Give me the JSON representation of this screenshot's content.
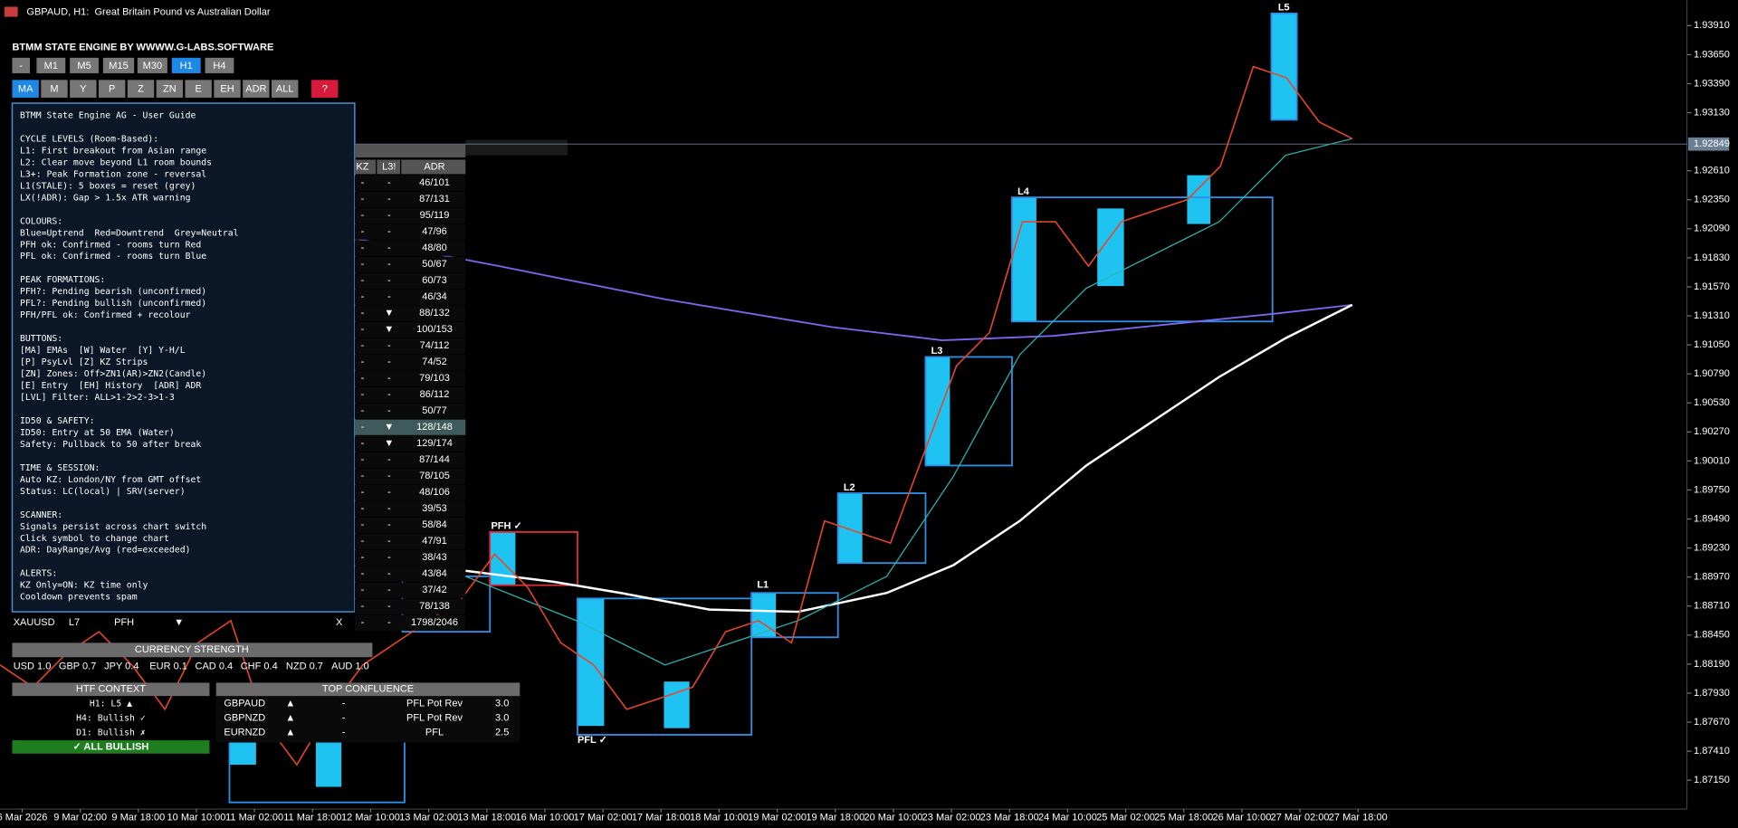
{
  "header": {
    "title": "GBPAUD, H1:  Great Britain Pound vs Australian Dollar"
  },
  "panel": {
    "title": "BTMM STATE ENGINE BY WWWW.G-LABS.SOFTWARE",
    "timeframes": [
      "-",
      "M1",
      "M5",
      "M15",
      "M30",
      "H1",
      "H4"
    ],
    "active_timeframe": "H1",
    "modes": [
      "MA",
      "M",
      "Y",
      "P",
      "Z",
      "ZN",
      "E",
      "EH",
      "ADR",
      "ALL",
      "?"
    ],
    "active_mode": "MA"
  },
  "guide": {
    "title": "BTMM State Engine AG - User Guide",
    "sections": [
      {
        "heading": "CYCLE LEVELS (Room-Based):",
        "lines": [
          "L1: First breakout from Asian range",
          "L2: Clear move beyond L1 room bounds",
          "L3+: Peak Formation zone - reversal",
          "L1(STALE): 5 boxes = reset (grey)",
          "LX(!ADR): Gap > 1.5x ATR warning"
        ]
      },
      {
        "heading": "COLOURS:",
        "lines": [
          "Blue=Uptrend  Red=Downtrend  Grey=Neutral",
          "PFH ok: Confirmed - rooms turn Red",
          "PFL ok: Confirmed - rooms turn Blue"
        ]
      },
      {
        "heading": "PEAK FORMATIONS:",
        "lines": [
          "PFH?: Pending bearish (unconfirmed)",
          "PFL?: Pending bullish (unconfirmed)",
          "PFH/PFL ok: Confirmed + recolour"
        ]
      },
      {
        "heading": "BUTTONS:",
        "lines": [
          "[MA] EMAs  [W] Water  [Y] Y-H/L",
          "[P] PsyLvl [Z] KZ Strips",
          "[ZN] Zones: Off>ZN1(AR)>ZN2(Candle)",
          "[E] Entry  [EH] History  [ADR] ADR",
          "[LVL] Filter: ALL>1-2>2-3>1-3"
        ]
      },
      {
        "heading": "ID50 & SAFETY:",
        "lines": [
          "ID50: Entry at 50 EMA (Water)",
          "Safety: Pullback to 50 after break"
        ]
      },
      {
        "heading": "TIME & SESSION:",
        "lines": [
          "Auto KZ: London/NY from GMT offset",
          "Status: LC(local) | SRV(server)"
        ]
      },
      {
        "heading": "SCANNER:",
        "lines": [
          "Signals persist across chart switch",
          "Click symbol to change chart",
          "ADR: DayRange/Avg (red=exceeded)"
        ]
      },
      {
        "heading": "ALERTS:",
        "lines": [
          "KZ Only=ON: KZ time only",
          "Cooldown prevents spam"
        ]
      }
    ]
  },
  "scanner": {
    "columns": [
      "KZ",
      "L3!",
      "ADR"
    ],
    "rows": [
      {
        "kz": "-",
        "l3": "-",
        "adr": "46/101"
      },
      {
        "kz": "-",
        "l3": "-",
        "adr": "87/131"
      },
      {
        "kz": "-",
        "l3": "-",
        "adr": "95/119"
      },
      {
        "kz": "-",
        "l3": "-",
        "adr": "47/96"
      },
      {
        "kz": "-",
        "l3": "-",
        "adr": "48/80"
      },
      {
        "kz": "-",
        "l3": "-",
        "adr": "50/67"
      },
      {
        "kz": "-",
        "l3": "-",
        "adr": "60/73",
        "color": "#e8a33a"
      },
      {
        "kz": "-",
        "l3": "-",
        "adr": "46/34",
        "color": "#e02020"
      },
      {
        "kz": "-",
        "l3": "▼",
        "adr": "88/132"
      },
      {
        "kz": "-",
        "l3": "▼",
        "adr": "100/153"
      },
      {
        "kz": "-",
        "l3": "-",
        "adr": "74/112"
      },
      {
        "kz": "-",
        "l3": "-",
        "adr": "74/52",
        "color": "#e02020"
      },
      {
        "kz": "-",
        "l3": "-",
        "adr": "79/103"
      },
      {
        "kz": "-",
        "l3": "-",
        "adr": "86/112"
      },
      {
        "kz": "-",
        "l3": "-",
        "adr": "50/77"
      },
      {
        "kz": "-",
        "l3": "▼",
        "adr": "128/148",
        "color": "#e8a33a",
        "highlight": true
      },
      {
        "kz": "-",
        "l3": "▼",
        "adr": "129/174"
      },
      {
        "kz": "-",
        "l3": "-",
        "adr": "87/144"
      },
      {
        "kz": "-",
        "l3": "-",
        "adr": "78/105"
      },
      {
        "kz": "-",
        "l3": "-",
        "adr": "48/106"
      },
      {
        "kz": "-",
        "l3": "-",
        "adr": "39/53"
      },
      {
        "kz": "-",
        "l3": "-",
        "adr": "58/84"
      },
      {
        "kz": "-",
        "l3": "-",
        "adr": "47/91"
      },
      {
        "kz": "-",
        "l3": "-",
        "adr": "38/43",
        "color": "#e8a33a"
      },
      {
        "kz": "-",
        "l3": "-",
        "adr": "43/84"
      },
      {
        "kz": "-",
        "l3": "-",
        "adr": "37/42",
        "color": "#e8a33a"
      },
      {
        "kz": "-",
        "l3": "-",
        "adr": "78/138"
      },
      {
        "kz": "-",
        "l3": "-",
        "adr": "1798/2046",
        "color": "#e8a33a"
      }
    ],
    "partial_row": {
      "symbol": "XAUUSD",
      "level": "L7",
      "formation": "PFH",
      "direction": "▼",
      "status": "X"
    }
  },
  "currency_strength": {
    "title": "CURRENCY STRENGTH",
    "items": [
      {
        "text": "USD 1.0",
        "color": "#3ad13a"
      },
      {
        "text": "GBP 0.7",
        "color": "#3ad13a"
      },
      {
        "text": "JPY 0.4",
        "color": "#1f7a1f"
      },
      {
        "text": "EUR 0.1",
        "color": "#a0a0a0"
      },
      {
        "text": "CAD 0.4",
        "color": "#8a1c1c"
      },
      {
        "text": "CHF 0.4",
        "color": "#8a1c1c"
      },
      {
        "text": "NZD 0.7",
        "color": "#e02020"
      },
      {
        "text": "AUD 1.0",
        "color": "#e02020"
      }
    ]
  },
  "htf_context": {
    "title": "HTF CONTEXT",
    "lines": [
      "H1: L5 ▲",
      "H4: Bullish ✓",
      "D1: Bullish ✗"
    ],
    "verdict": "✓ ALL BULLISH"
  },
  "top_confluence": {
    "title": "TOP CONFLUENCE",
    "rows": [
      [
        "GBPAUD",
        "▲",
        "-",
        "PFL Pot Rev",
        "3.0"
      ],
      [
        "GBPNZD",
        "▲",
        "-",
        "PFL Pot Rev",
        "3.0"
      ],
      [
        "EURNZD",
        "▲",
        "-",
        "PFL",
        "2.5"
      ]
    ]
  },
  "price_chart": {
    "ylim": [
      1.8715,
      1.9391
    ],
    "yticks": [
      {
        "value": 1.9391,
        "label": "1.93910"
      },
      {
        "value": 1.9365,
        "label": "1.93650"
      },
      {
        "value": 1.9339,
        "label": "1.93390"
      },
      {
        "value": 1.9313,
        "label": "1.93130"
      },
      {
        "value": 1.9261,
        "label": "1.92610"
      },
      {
        "value": 1.9235,
        "label": "1.92350"
      },
      {
        "value": 1.9209,
        "label": "1.92090"
      },
      {
        "value": 1.9183,
        "label": "1.91830"
      },
      {
        "value": 1.9157,
        "label": "1.91570"
      },
      {
        "value": 1.9131,
        "label": "1.91310"
      },
      {
        "value": 1.9105,
        "label": "1.91050"
      },
      {
        "value": 1.9079,
        "label": "1.90790"
      },
      {
        "value": 1.9053,
        "label": "1.90530"
      },
      {
        "value": 1.9027,
        "label": "1.90270"
      },
      {
        "value": 1.9001,
        "label": "1.90010"
      },
      {
        "value": 1.8975,
        "label": "1.89750"
      },
      {
        "value": 1.8949,
        "label": "1.89490"
      },
      {
        "value": 1.8923,
        "label": "1.89230"
      },
      {
        "value": 1.8897,
        "label": "1.88970"
      },
      {
        "value": 1.8871,
        "label": "1.88710"
      },
      {
        "value": 1.8845,
        "label": "1.88450"
      },
      {
        "value": 1.8819,
        "label": "1.88190"
      },
      {
        "value": 1.8793,
        "label": "1.87930"
      },
      {
        "value": 1.8767,
        "label": "1.87670"
      },
      {
        "value": 1.8741,
        "label": "1.87410"
      },
      {
        "value": 1.8715,
        "label": "1.87150"
      }
    ],
    "current_price": 1.92849,
    "time_labels": [
      "6 Mar 2026",
      "9 Mar 02:00",
      "9 Mar 18:00",
      "10 Mar 10:00",
      "11 Mar 02:00",
      "11 Mar 18:00",
      "12 Mar 10:00",
      "13 Mar 02:00",
      "13 Mar 18:00",
      "16 Mar 10:00",
      "17 Mar 02:00",
      "17 Mar 18:00",
      "18 Mar 10:00",
      "19 Mar 02:00",
      "19 Mar 18:00",
      "20 Mar 10:00",
      "23 Mar 02:00",
      "23 Mar 18:00",
      "24 Mar 10:00",
      "25 Mar 02:00",
      "25 Mar 18:00",
      "26 Mar 10:00",
      "27 Mar 02:00",
      "27 Mar 18:00"
    ],
    "closes": [
      1.88182,
      1.87984,
      1.88281,
      1.8848,
      1.88182,
      1.87785,
      1.88381,
      1.88579,
      1.87686,
      1.87289,
      1.87785,
      1.88182,
      1.88381,
      1.88579,
      1.88778,
      1.89175,
      1.88877,
      1.88381,
      1.88182,
      1.87785,
      1.87884,
      1.87984,
      1.8848,
      1.88579,
      1.88381,
      1.89473,
      1.89373,
      1.89274,
      1.90068,
      1.90862,
      1.9116,
      1.92153,
      1.92153,
      1.91756,
      1.92153,
      1.92252,
      1.92351,
      1.92649,
      1.93543,
      1.93443,
      1.93046,
      1.92897
    ],
    "room_labels": [
      "L1",
      "L2",
      "L3",
      "L4",
      "L5",
      "PFH ✓",
      "PFL ✓"
    ]
  }
}
